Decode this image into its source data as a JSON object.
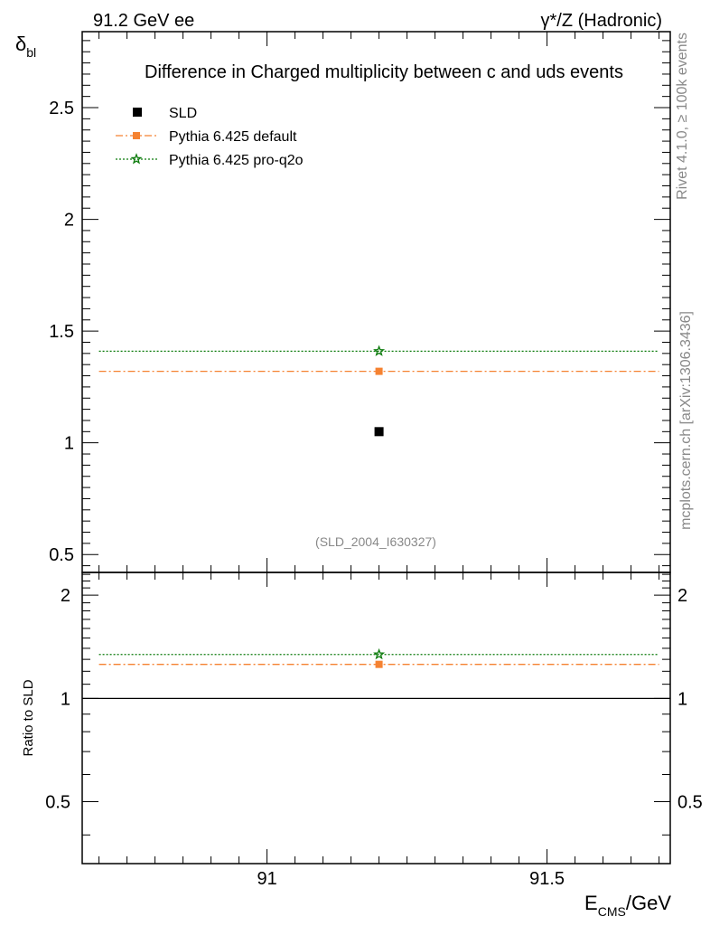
{
  "header": {
    "left_label": "91.2 GeV ee",
    "right_label": "γ*/Z (Hadronic)"
  },
  "side_labels": {
    "rivet": "Rivet 4.1.0, ≥ 100k events",
    "mcplots": "mcplots.cern.ch [arXiv:1306.3436]"
  },
  "colors": {
    "data": "#000000",
    "default": "#f58231",
    "proq2o": "#0a7a0a",
    "axis": "#000000",
    "watermark": "#888888"
  },
  "chart_data": [
    {
      "type": "line",
      "title": "Difference in Charged multiplicity between c and uds events",
      "ylabel_main": "δ",
      "ylabel_sub": "bl",
      "xlabel_main": "E",
      "xlabel_sub": "CMS",
      "xlabel_unit": "/GeV",
      "analysis_tag": "(SLD_2004_I630327)",
      "xlim": [
        90.67,
        91.72
      ],
      "ylim": [
        0.42,
        2.84
      ],
      "yticks": [
        0.5,
        1,
        1.5,
        2,
        2.5
      ],
      "yticklabels": [
        "0.5",
        "1",
        "1.5",
        "2",
        "2.5"
      ],
      "legend": {
        "position": "top-left",
        "entries": [
          "SLD",
          "Pythia 6.425 default",
          "Pythia 6.425 pro-q2o"
        ]
      },
      "series": [
        {
          "name": "SLD",
          "kind": "data",
          "x": [
            91.2
          ],
          "y": [
            1.05
          ]
        },
        {
          "name": "Pythia 6.425 default",
          "kind": "default",
          "x": [
            91.2
          ],
          "y": [
            1.32
          ],
          "xrange": [
            90.7,
            91.7
          ]
        },
        {
          "name": "Pythia 6.425 pro-q2o",
          "kind": "proq2o",
          "x": [
            91.2
          ],
          "y": [
            1.41
          ],
          "xrange": [
            90.7,
            91.7
          ]
        }
      ]
    },
    {
      "type": "line",
      "title": "",
      "ylabel": "Ratio to SLD",
      "xlabel": "E_CMS/GeV",
      "xlim": [
        90.67,
        91.72
      ],
      "ylim": [
        0.33,
        2.33
      ],
      "yticks": [
        0.5,
        1,
        2
      ],
      "yticklabels": [
        "0.5",
        "1",
        "2"
      ],
      "xticks": [
        91,
        91.5
      ],
      "xticklabels": [
        "91",
        "91.5"
      ],
      "reference_line": 1,
      "series": [
        {
          "name": "Pythia 6.425 default",
          "kind": "default",
          "x": [
            91.2
          ],
          "y": [
            1.257
          ],
          "xrange": [
            90.7,
            91.7
          ]
        },
        {
          "name": "Pythia 6.425 pro-q2o",
          "kind": "proq2o",
          "x": [
            91.2
          ],
          "y": [
            1.343
          ],
          "xrange": [
            90.7,
            91.7
          ]
        }
      ]
    }
  ]
}
